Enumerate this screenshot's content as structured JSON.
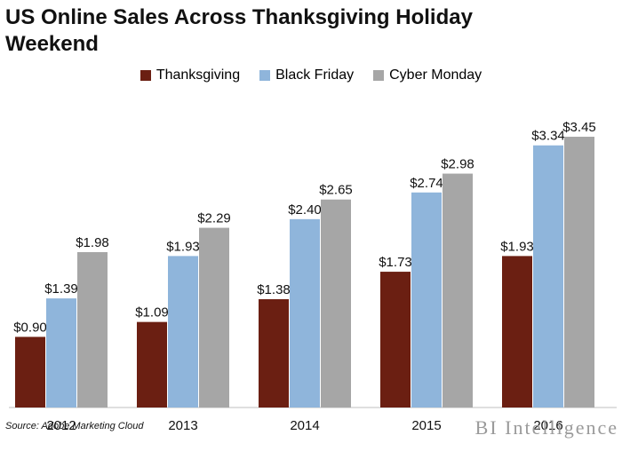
{
  "chart_data": {
    "type": "bar",
    "title": "US Online Sales Across Thanksgiving Holiday Weekend",
    "categories": [
      "2012",
      "2013",
      "2014",
      "2015",
      "2016"
    ],
    "series": [
      {
        "name": "Thanksgiving",
        "color": "#6b1f12",
        "values": [
          0.9,
          1.09,
          1.38,
          1.73,
          1.93
        ],
        "labels": [
          "$0.90",
          "$1.09",
          "$1.38",
          "$1.73",
          "$1.93"
        ]
      },
      {
        "name": "Black Friday",
        "color": "#8fb5db",
        "values": [
          1.39,
          1.93,
          2.4,
          2.74,
          3.34
        ],
        "labels": [
          "$1.39",
          "$1.93",
          "$2.40",
          "$2.74",
          "$3.34"
        ]
      },
      {
        "name": "Cyber Monday",
        "color": "#a6a6a6",
        "values": [
          1.98,
          2.29,
          2.65,
          2.98,
          3.45
        ],
        "labels": [
          "$1.98",
          "$2.29",
          "$2.65",
          "$2.98",
          "$3.45"
        ]
      }
    ],
    "legend_position": "top-center",
    "grid": false
  },
  "source": "Source: Adobe Marketing Cloud",
  "brand": "BI Intelligence"
}
